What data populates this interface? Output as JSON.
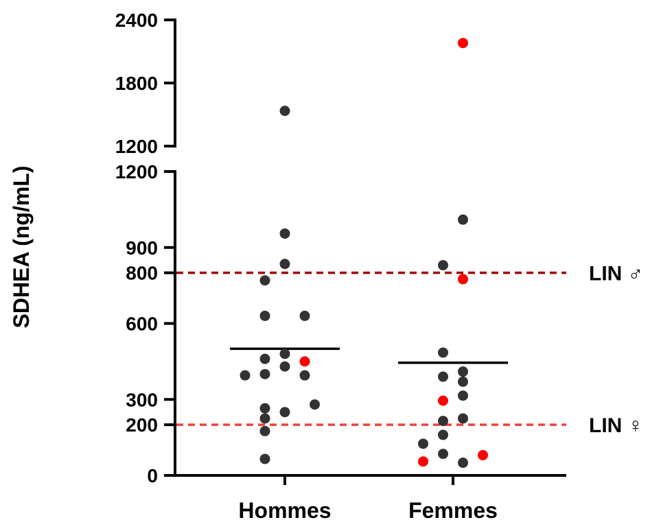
{
  "chart_data": {
    "type": "scatter",
    "ylabel": "SDHEA (ng/mL)",
    "categories": [
      "Hommes",
      "Femmes"
    ],
    "y_axis_segments": [
      {
        "ylim": [
          0,
          1200
        ],
        "ticks": [
          "0",
          "200",
          "300",
          "600",
          "800",
          "900",
          "1200"
        ]
      },
      {
        "ylim": [
          1200,
          2400
        ],
        "ticks": [
          "1200",
          "1800",
          "2400"
        ]
      }
    ],
    "reference_lines": [
      {
        "label": "LIN ♂",
        "value": 800,
        "color": "#a00000"
      },
      {
        "label": "LIN ♀",
        "value": 200,
        "color": "#f04040"
      }
    ],
    "series_colors": {
      "black": "#333333",
      "red": "#ff0000"
    },
    "groups": [
      {
        "category": "Hommes",
        "mean": 500,
        "points": [
          {
            "y": 1535,
            "color": "black",
            "offset": 0
          },
          {
            "y": 955,
            "color": "black",
            "offset": 0
          },
          {
            "y": 835,
            "color": "black",
            "offset": 0
          },
          {
            "y": 770,
            "color": "black",
            "offset": -1
          },
          {
            "y": 630,
            "color": "black",
            "offset": -1
          },
          {
            "y": 630,
            "color": "black",
            "offset": 1
          },
          {
            "y": 480,
            "color": "black",
            "offset": 0
          },
          {
            "y": 460,
            "color": "black",
            "offset": -1
          },
          {
            "y": 450,
            "color": "red",
            "offset": 1
          },
          {
            "y": 430,
            "color": "black",
            "offset": 0
          },
          {
            "y": 400,
            "color": "black",
            "offset": -1
          },
          {
            "y": 395,
            "color": "black",
            "offset": -2
          },
          {
            "y": 395,
            "color": "black",
            "offset": 1
          },
          {
            "y": 280,
            "color": "black",
            "offset": 1.5
          },
          {
            "y": 265,
            "color": "black",
            "offset": -1
          },
          {
            "y": 250,
            "color": "black",
            "offset": 0
          },
          {
            "y": 225,
            "color": "black",
            "offset": -1
          },
          {
            "y": 175,
            "color": "black",
            "offset": -1
          },
          {
            "y": 65,
            "color": "black",
            "offset": -1
          }
        ]
      },
      {
        "category": "Femmes",
        "mean": 445,
        "points": [
          {
            "y": 2180,
            "color": "red",
            "offset": 0.5
          },
          {
            "y": 1010,
            "color": "black",
            "offset": 0.5
          },
          {
            "y": 830,
            "color": "black",
            "offset": -0.5
          },
          {
            "y": 775,
            "color": "red",
            "offset": 0.5
          },
          {
            "y": 485,
            "color": "black",
            "offset": -0.5
          },
          {
            "y": 410,
            "color": "black",
            "offset": 0.5
          },
          {
            "y": 390,
            "color": "black",
            "offset": -0.5
          },
          {
            "y": 370,
            "color": "black",
            "offset": 0.5
          },
          {
            "y": 315,
            "color": "black",
            "offset": 0.5
          },
          {
            "y": 295,
            "color": "red",
            "offset": -0.5
          },
          {
            "y": 225,
            "color": "black",
            "offset": 0.5
          },
          {
            "y": 215,
            "color": "black",
            "offset": -0.5
          },
          {
            "y": 160,
            "color": "black",
            "offset": -0.5
          },
          {
            "y": 125,
            "color": "black",
            "offset": -1.5
          },
          {
            "y": 85,
            "color": "black",
            "offset": -0.5
          },
          {
            "y": 80,
            "color": "red",
            "offset": 1.5
          },
          {
            "y": 55,
            "color": "red",
            "offset": -1.5
          },
          {
            "y": 50,
            "color": "black",
            "offset": 0.5
          }
        ]
      }
    ]
  }
}
